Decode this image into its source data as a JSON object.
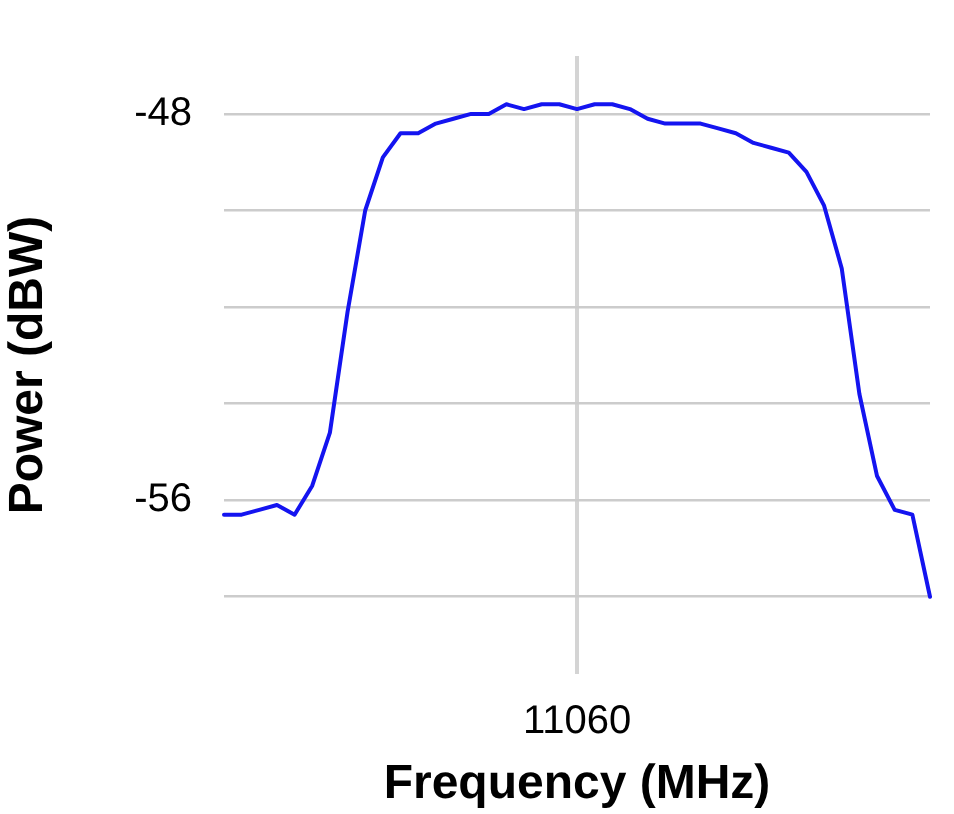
{
  "chart_data": {
    "type": "line",
    "xlabel": "Frequency (MHz)",
    "ylabel": "Power (dBW)",
    "categories": [
      null,
      null,
      null,
      null,
      null,
      null,
      null,
      null,
      null,
      null,
      null,
      null,
      null,
      null,
      null,
      null,
      null,
      null,
      null,
      null,
      "11060",
      null,
      null,
      null,
      null,
      null,
      null,
      null,
      null,
      null,
      null,
      null,
      null,
      null,
      null,
      null,
      null,
      null,
      null,
      null,
      null
    ],
    "ylim": [
      -59.6,
      -46.8
    ],
    "yticks": [
      -48,
      {
        "value": -50,
        "label": null
      },
      {
        "value": -52,
        "label": null
      },
      {
        "value": -54,
        "label": null
      },
      -56,
      {
        "value": -58,
        "label": null
      }
    ],
    "grid": true,
    "legend": false,
    "marker": "none",
    "line_style": "solid",
    "series": [
      {
        "color": "#1414f0",
        "values": [
          -56.3,
          -56.3,
          -56.2,
          -56.1,
          -56.3,
          -55.7,
          -54.6,
          -52.1,
          -50.0,
          -48.9,
          -48.4,
          -48.4,
          -48.2,
          -48.1,
          -48.0,
          -48.0,
          -47.8,
          -47.9,
          -47.8,
          -47.8,
          -47.9,
          -47.8,
          -47.8,
          -47.9,
          -48.1,
          -48.2,
          -48.2,
          -48.2,
          -48.3,
          -48.4,
          -48.6,
          -48.7,
          -48.8,
          -49.2,
          -49.9,
          -51.2,
          -53.8,
          -55.5,
          -56.2,
          -56.3,
          -58.0
        ]
      }
    ]
  }
}
